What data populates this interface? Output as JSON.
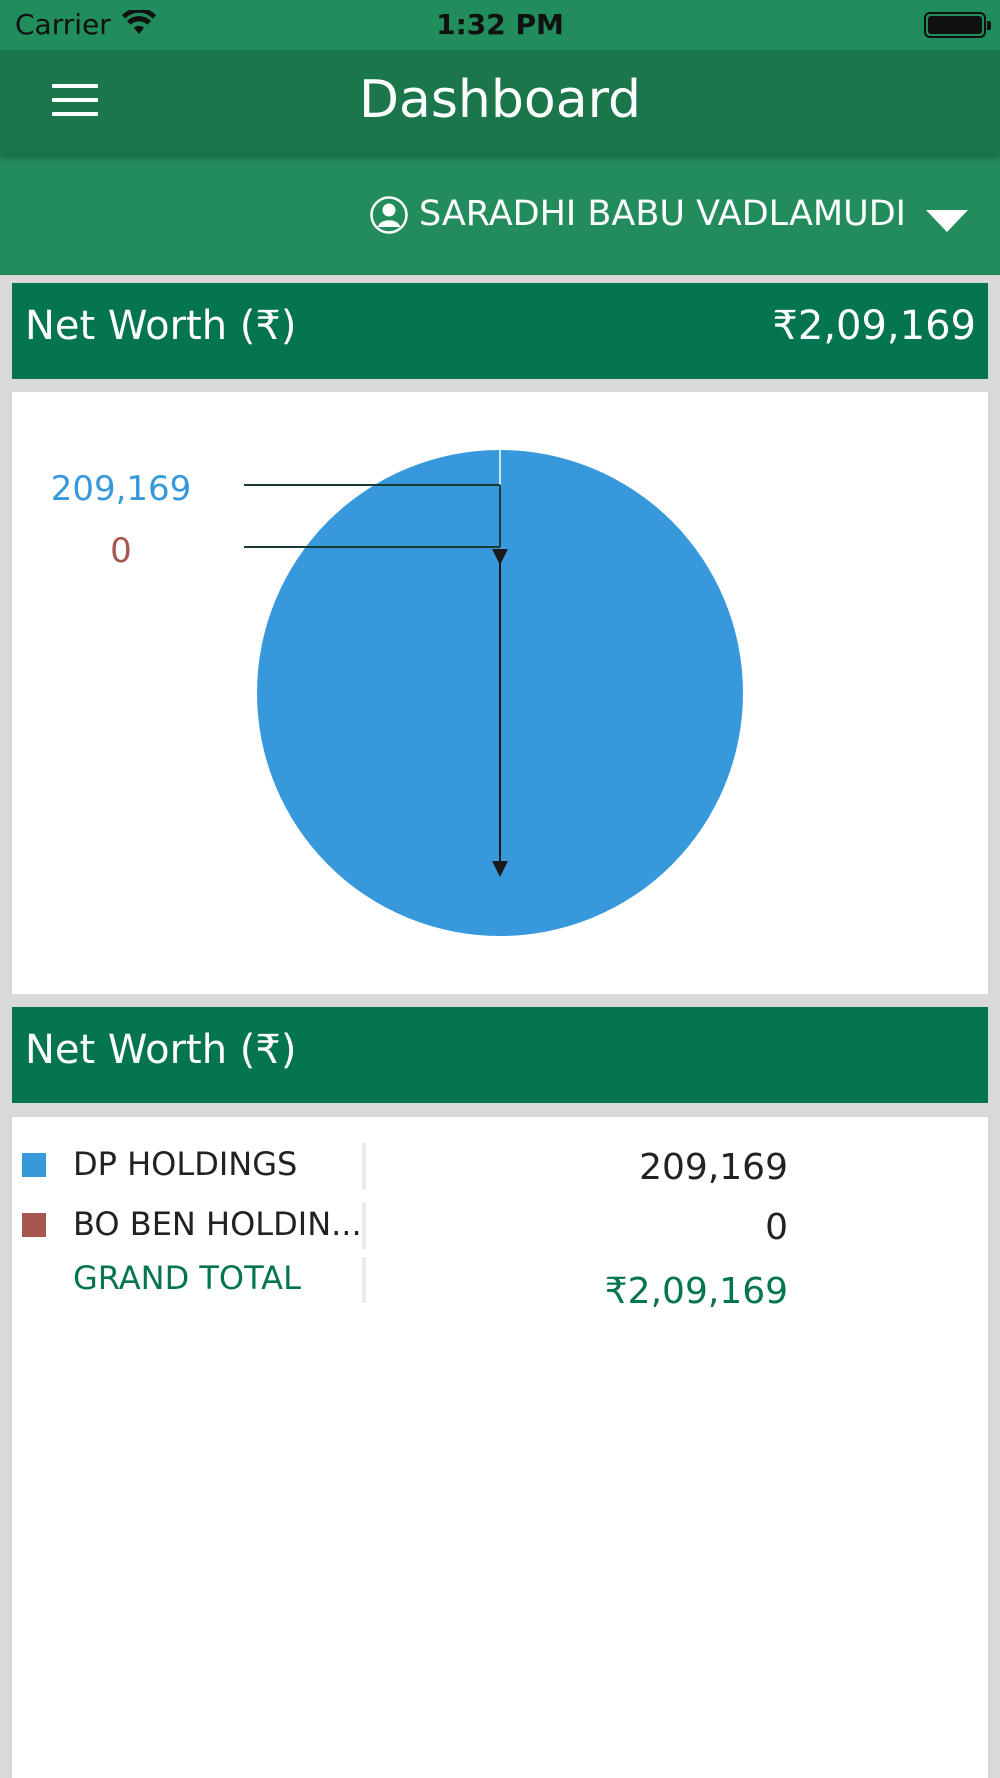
{
  "status_bar": {
    "carrier": "Carrier",
    "time": "1:32 PM"
  },
  "nav": {
    "title": "Dashboard",
    "menu_icon": "hamburger-icon"
  },
  "user": {
    "name": "SARADHI BABU VADLAMUDI",
    "icon": "user-avatar-icon",
    "dropdown_icon": "triangle-down-icon"
  },
  "net_worth_header": {
    "label": "Net Worth (₹)",
    "value": "₹2,09,169"
  },
  "chart_data": {
    "type": "pie",
    "slices": [
      {
        "name": "DP HOLDINGS",
        "value": 209169,
        "label": "209,169",
        "color": "#3798dc"
      },
      {
        "name": "BO BEN HOLDINGS",
        "value": 0,
        "label": "0",
        "color": "#a6554f"
      }
    ]
  },
  "breakdown": {
    "header_label": "Net Worth (₹)",
    "rows": [
      {
        "name": "DP HOLDINGS",
        "amount": "209,169",
        "color": "#3798dc"
      },
      {
        "name": "BO BEN HOLDIN...",
        "amount": "0",
        "color": "#a6554f"
      }
    ],
    "total": {
      "label": "GRAND TOTAL",
      "amount": "₹2,09,169"
    }
  },
  "colors": {
    "primary": "#047451",
    "status_bar": "#218c5c",
    "nav": "#1b764b",
    "user_bar": "#228c5d"
  }
}
